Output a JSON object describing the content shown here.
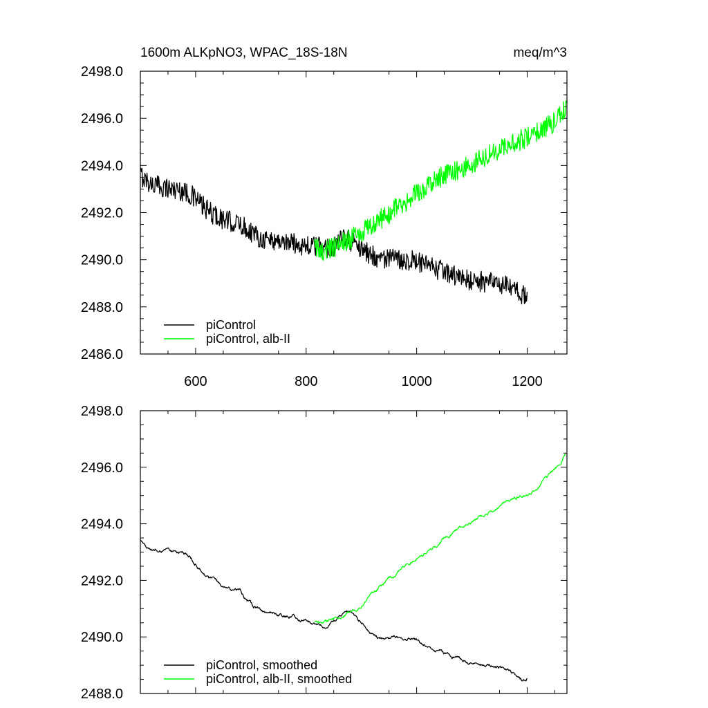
{
  "colors": {
    "pi_control": "#000000",
    "alb_ii": "#00ff00",
    "axes": "#000000",
    "background": "#ffffff"
  },
  "chart_data": [
    {
      "type": "line",
      "panel": "top",
      "title_left": "1600m ALKpNO3, WPAC_18S-18N",
      "title_right": "meq/m^3",
      "xlabel": "",
      "ylabel": "",
      "xlim": [
        500,
        1272
      ],
      "ylim": [
        2486.0,
        2498.0
      ],
      "x_ticks": [
        600,
        800,
        1000,
        1200
      ],
      "x_tick_labels": [
        "600",
        "800",
        "1000",
        "1200"
      ],
      "y_ticks": [
        2486.0,
        2488.0,
        2490.0,
        2492.0,
        2494.0,
        2496.0,
        2498.0
      ],
      "y_tick_labels": [
        "2486.0",
        "2488.0",
        "2490.0",
        "2492.0",
        "2494.0",
        "2496.0",
        "2498.0"
      ],
      "legend_position": "bottom-left",
      "noise": 0.45,
      "series": [
        {
          "name": "piControl",
          "color_key": "pi_control",
          "anchors": [
            [
              500,
              2493.6
            ],
            [
              520,
              2493.2
            ],
            [
              540,
              2493.1
            ],
            [
              560,
              2493.0
            ],
            [
              580,
              2492.9
            ],
            [
              600,
              2492.6
            ],
            [
              620,
              2492.1
            ],
            [
              650,
              2491.7
            ],
            [
              680,
              2491.5
            ],
            [
              700,
              2491.2
            ],
            [
              720,
              2490.9
            ],
            [
              750,
              2490.8
            ],
            [
              780,
              2490.7
            ],
            [
              800,
              2490.6
            ],
            [
              830,
              2490.5
            ],
            [
              850,
              2490.6
            ],
            [
              870,
              2490.9
            ],
            [
              890,
              2490.7
            ],
            [
              910,
              2490.3
            ],
            [
              930,
              2490.1
            ],
            [
              960,
              2490.0
            ],
            [
              990,
              2490.0
            ],
            [
              1020,
              2489.7
            ],
            [
              1050,
              2489.5
            ],
            [
              1080,
              2489.2
            ],
            [
              1110,
              2489.1
            ],
            [
              1140,
              2489.0
            ],
            [
              1170,
              2488.8
            ],
            [
              1190,
              2488.5
            ],
            [
              1200,
              2488.5
            ]
          ]
        },
        {
          "name": "piControl, alb-II",
          "color_key": "alb_ii",
          "anchors": [
            [
              815,
              2490.5
            ],
            [
              830,
              2490.4
            ],
            [
              850,
              2490.5
            ],
            [
              870,
              2490.8
            ],
            [
              890,
              2491.0
            ],
            [
              910,
              2491.3
            ],
            [
              940,
              2491.8
            ],
            [
              970,
              2492.3
            ],
            [
              1000,
              2492.8
            ],
            [
              1030,
              2493.3
            ],
            [
              1060,
              2493.7
            ],
            [
              1090,
              2494.0
            ],
            [
              1120,
              2494.3
            ],
            [
              1150,
              2494.7
            ],
            [
              1180,
              2495.0
            ],
            [
              1210,
              2495.3
            ],
            [
              1240,
              2495.7
            ],
            [
              1255,
              2496.0
            ],
            [
              1272,
              2496.5
            ]
          ]
        }
      ]
    },
    {
      "type": "line",
      "panel": "bottom",
      "title_left": "",
      "title_right": "",
      "xlabel": "",
      "ylabel": "",
      "xlim": [
        500,
        1272
      ],
      "ylim": [
        2488.0,
        2498.0
      ],
      "x_ticks": [
        600,
        800,
        1000,
        1200
      ],
      "x_tick_labels": [],
      "y_ticks": [
        2488.0,
        2490.0,
        2492.0,
        2494.0,
        2496.0,
        2498.0
      ],
      "y_tick_labels": [
        "2488.0",
        "2490.0",
        "2492.0",
        "2494.0",
        "2496.0",
        "2498.0"
      ],
      "legend_position": "bottom-left",
      "noise": 0.08,
      "series": [
        {
          "name": "piControl, smoothed",
          "color_key": "pi_control",
          "anchors": [
            [
              500,
              2493.4
            ],
            [
              520,
              2493.1
            ],
            [
              540,
              2493.0
            ],
            [
              560,
              2493.0
            ],
            [
              580,
              2492.9
            ],
            [
              600,
              2492.6
            ],
            [
              620,
              2492.1
            ],
            [
              650,
              2491.8
            ],
            [
              680,
              2491.6
            ],
            [
              700,
              2491.2
            ],
            [
              720,
              2490.9
            ],
            [
              750,
              2490.8
            ],
            [
              780,
              2490.7
            ],
            [
              800,
              2490.6
            ],
            [
              830,
              2490.4
            ],
            [
              850,
              2490.6
            ],
            [
              870,
              2490.9
            ],
            [
              890,
              2490.7
            ],
            [
              910,
              2490.3
            ],
            [
              930,
              2490.0
            ],
            [
              960,
              2490.0
            ],
            [
              990,
              2490.0
            ],
            [
              1020,
              2489.7
            ],
            [
              1050,
              2489.4
            ],
            [
              1080,
              2489.2
            ],
            [
              1110,
              2489.1
            ],
            [
              1140,
              2489.0
            ],
            [
              1170,
              2488.8
            ],
            [
              1190,
              2488.5
            ],
            [
              1200,
              2488.6
            ]
          ]
        },
        {
          "name": "piControl, alb-II, smoothed",
          "color_key": "alb_ii",
          "anchors": [
            [
              815,
              2490.5
            ],
            [
              830,
              2490.4
            ],
            [
              850,
              2490.6
            ],
            [
              870,
              2490.8
            ],
            [
              890,
              2491.0
            ],
            [
              910,
              2491.3
            ],
            [
              940,
              2491.9
            ],
            [
              970,
              2492.4
            ],
            [
              1000,
              2492.8
            ],
            [
              1030,
              2493.2
            ],
            [
              1060,
              2493.6
            ],
            [
              1090,
              2494.0
            ],
            [
              1120,
              2494.3
            ],
            [
              1150,
              2494.6
            ],
            [
              1180,
              2494.9
            ],
            [
              1210,
              2495.2
            ],
            [
              1240,
              2495.7
            ],
            [
              1255,
              2496.0
            ],
            [
              1270,
              2496.5
            ]
          ]
        }
      ]
    }
  ]
}
